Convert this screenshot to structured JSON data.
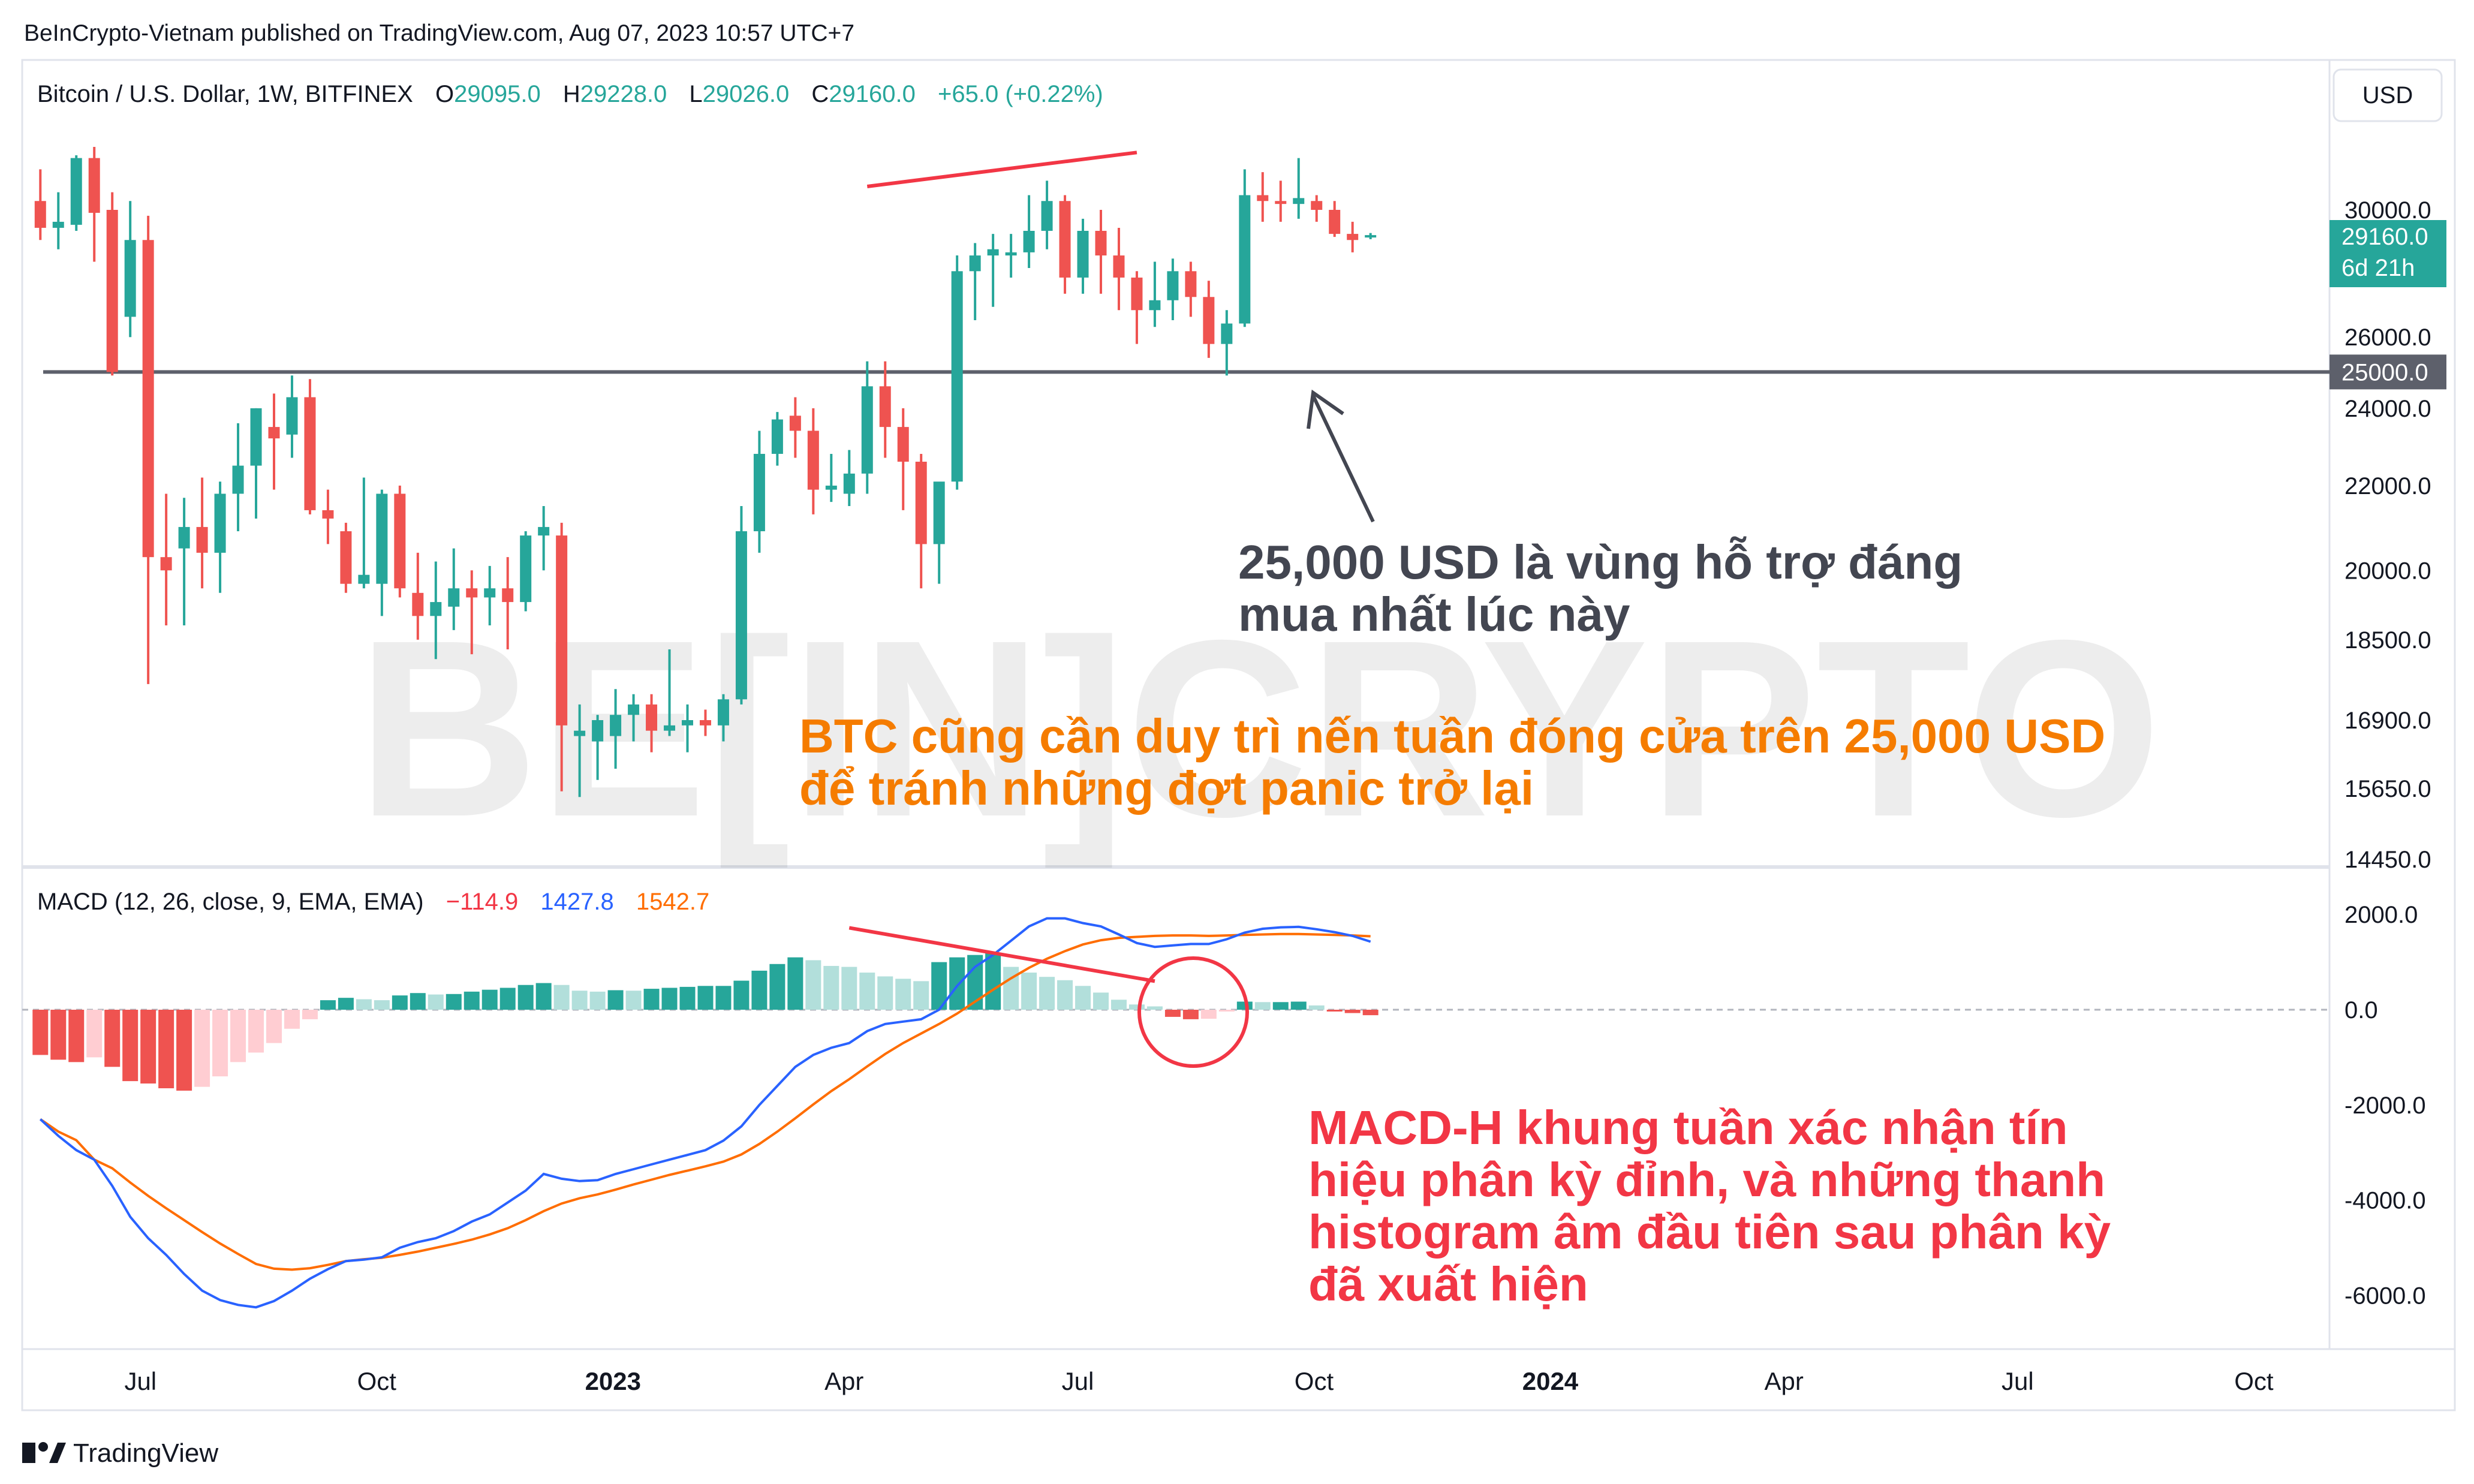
{
  "header": {
    "published_by": "BeInCrypto-Vietnam published on TradingView.com, Aug 07, 2023 10:57 UTC+7"
  },
  "symbol": {
    "name": "Bitcoin / U.S. Dollar, 1W, BITFINEX",
    "open_label": "O",
    "open": "29095.0",
    "high_label": "H",
    "high": "29228.0",
    "low_label": "L",
    "low": "29026.0",
    "close_label": "C",
    "close": "29160.0",
    "change": "+65.0 (+0.22%)"
  },
  "currency_button": "USD",
  "price_tag": {
    "price": "29160.0",
    "countdown": "6d 21h"
  },
  "support_tag": "25000.0",
  "annotations": {
    "support_note_1": "25,000 USD là vùng hỗ trợ đáng",
    "support_note_2": "mua nhất lúc này",
    "weekly_note_1": "BTC cũng cần duy trì nến tuần đóng cửa trên 25,000 USD",
    "weekly_note_2": "để tránh những đợt panic trở lại",
    "macd_note_1": "MACD-H khung tuần xác nhận tín",
    "macd_note_2": "hiệu phân kỳ đỉnh, và những thanh",
    "macd_note_3": "histogram âm đầu tiên sau phân kỳ",
    "macd_note_4": "đã xuất hiện"
  },
  "watermark": "BE[IN]CRYPTO",
  "macd_legend": {
    "name": "MACD (12, 26, close, 9, EMA, EMA)",
    "hist": "−114.9",
    "macd": "1427.8",
    "signal": "1542.7"
  },
  "footer": {
    "brand": "TradingView"
  },
  "colors": {
    "up": "#26a69a",
    "down": "#ef5350",
    "hist_up_weak": "#b2dfdb",
    "hist_down_weak": "#ffcdd2",
    "macd": "#2962ff",
    "signal": "#ff6d00",
    "note_orange": "#f57c00",
    "note_red": "#f23645",
    "note_dark": "#434651"
  },
  "chart_data": [
    {
      "type": "candlestick",
      "title": "Bitcoin / U.S. Dollar, 1W, BITFINEX",
      "y_scale": "log",
      "y_ticks": [
        "30000.0",
        "26000.0",
        "24000.0",
        "22000.0",
        "20000.0",
        "18500.0",
        "16900.0",
        "15650.0",
        "14450.0"
      ],
      "x_ticks": [
        "Jul",
        "Oct",
        "2023",
        "Apr",
        "Jul",
        "Oct",
        "2024",
        "Apr",
        "Jul",
        "Oct"
      ],
      "support_level": 25000,
      "x_start": "2022-05-23",
      "interval": "1W",
      "ohlc": [
        [
          30300,
          31400,
          29000,
          29400
        ],
        [
          29400,
          30600,
          28700,
          29600
        ],
        [
          29500,
          31900,
          29300,
          31800
        ],
        [
          31800,
          32200,
          28300,
          29900
        ],
        [
          30000,
          30600,
          24900,
          25000
        ],
        [
          26600,
          30300,
          26000,
          29000
        ],
        [
          29000,
          29800,
          17600,
          20300
        ],
        [
          20300,
          21800,
          18800,
          20000
        ],
        [
          20500,
          21700,
          18800,
          21000
        ],
        [
          21000,
          22200,
          19600,
          20400
        ],
        [
          20400,
          22100,
          19500,
          21800
        ],
        [
          21800,
          23600,
          20900,
          22500
        ],
        [
          22500,
          24000,
          21200,
          24000
        ],
        [
          23500,
          24400,
          21900,
          23200
        ],
        [
          23300,
          24900,
          22700,
          24300
        ],
        [
          24300,
          24800,
          21300,
          21400
        ],
        [
          21400,
          21900,
          20600,
          21200
        ],
        [
          20900,
          21100,
          19500,
          19700
        ],
        [
          19700,
          22200,
          19600,
          19900
        ],
        [
          19700,
          21900,
          19000,
          21800
        ],
        [
          21800,
          22000,
          19400,
          19600
        ],
        [
          19500,
          20400,
          18500,
          19000
        ],
        [
          19000,
          20200,
          18100,
          19300
        ],
        [
          19200,
          20500,
          18700,
          19600
        ],
        [
          19600,
          20000,
          18200,
          19400
        ],
        [
          19400,
          20100,
          18800,
          19600
        ],
        [
          19600,
          20300,
          18300,
          19300
        ],
        [
          19300,
          20900,
          19100,
          20800
        ],
        [
          20800,
          21500,
          20000,
          21000
        ],
        [
          20800,
          21100,
          15600,
          16800
        ],
        [
          16600,
          17200,
          15500,
          16700
        ],
        [
          16500,
          17000,
          15800,
          16900
        ],
        [
          16600,
          17500,
          16000,
          17000
        ],
        [
          17000,
          17400,
          16500,
          17200
        ],
        [
          17200,
          17400,
          16300,
          16700
        ],
        [
          16700,
          18300,
          16600,
          16800
        ],
        [
          16800,
          17200,
          16300,
          16900
        ],
        [
          16900,
          17100,
          16600,
          16800
        ],
        [
          16800,
          17400,
          16500,
          17300
        ],
        [
          17300,
          21500,
          17200,
          20900
        ],
        [
          20900,
          23400,
          20400,
          22800
        ],
        [
          22800,
          23900,
          22500,
          23700
        ],
        [
          23800,
          24300,
          22700,
          23400
        ],
        [
          23400,
          24000,
          21300,
          21900
        ],
        [
          21900,
          22800,
          21600,
          22000
        ],
        [
          21800,
          22900,
          21500,
          22300
        ],
        [
          22300,
          25300,
          21800,
          24600
        ],
        [
          24600,
          25300,
          22700,
          23500
        ],
        [
          23500,
          24000,
          21400,
          22600
        ],
        [
          22600,
          22800,
          19600,
          20600
        ],
        [
          20600,
          22000,
          19700,
          22100
        ],
        [
          22100,
          28500,
          21900,
          28000
        ],
        [
          28000,
          28900,
          26500,
          28500
        ],
        [
          28500,
          29200,
          26900,
          28700
        ],
        [
          28500,
          29200,
          27800,
          28600
        ],
        [
          28600,
          30500,
          28100,
          29300
        ],
        [
          29300,
          31000,
          28700,
          30300
        ],
        [
          30300,
          30500,
          27300,
          27800
        ],
        [
          27800,
          29700,
          27300,
          29300
        ],
        [
          29300,
          30000,
          27300,
          28500
        ],
        [
          28500,
          29400,
          26800,
          27800
        ],
        [
          27800,
          28000,
          25800,
          26800
        ],
        [
          26800,
          28300,
          26300,
          27100
        ],
        [
          27100,
          28400,
          26500,
          28000
        ],
        [
          28000,
          28300,
          26600,
          27200
        ],
        [
          27200,
          27700,
          25400,
          25800
        ],
        [
          25800,
          26800,
          24900,
          26400
        ],
        [
          26400,
          31400,
          26300,
          30500
        ],
        [
          30500,
          31300,
          29600,
          30300
        ],
        [
          30300,
          31000,
          29600,
          30200
        ],
        [
          30200,
          31800,
          29700,
          30400
        ],
        [
          30300,
          30500,
          29600,
          30000
        ],
        [
          30000,
          30300,
          29100,
          29200
        ],
        [
          29200,
          29600,
          28600,
          29000
        ],
        [
          29095,
          29228,
          29026,
          29160
        ]
      ],
      "annotation_lines": [
        {
          "name": "price_higher_high_trendline",
          "from": [
            "2023-04-10",
            30800
          ],
          "to": [
            "2023-07-24",
            32000
          ]
        }
      ]
    },
    {
      "type": "macd",
      "title": "MACD (12, 26, close, 9, EMA, EMA)",
      "y_ticks": [
        "2000.0",
        "0.0",
        "-2000.0",
        "-4000.0",
        "-6000.0"
      ],
      "series": [
        {
          "name": "MACD",
          "values": [
            -2300,
            -2650,
            -2950,
            -3150,
            -3700,
            -4350,
            -4800,
            -5150,
            -5550,
            -5900,
            -6100,
            -6200,
            -6250,
            -6120,
            -5900,
            -5650,
            -5450,
            -5280,
            -5250,
            -5200,
            -5000,
            -4880,
            -4800,
            -4650,
            -4450,
            -4300,
            -4050,
            -3800,
            -3450,
            -3550,
            -3600,
            -3580,
            -3450,
            -3350,
            -3250,
            -3150,
            -3050,
            -2950,
            -2750,
            -2450,
            -2000,
            -1600,
            -1200,
            -950,
            -800,
            -700,
            -450,
            -300,
            -250,
            -200,
            0,
            500,
            900,
            1150,
            1450,
            1750,
            1920,
            1920,
            1820,
            1750,
            1580,
            1400,
            1320,
            1350,
            1380,
            1380,
            1480,
            1620,
            1700,
            1730,
            1740,
            1690,
            1630,
            1550,
            1430
          ]
        },
        {
          "name": "Signal",
          "values": [
            -2300,
            -2560,
            -2740,
            -3150,
            -3330,
            -3630,
            -3910,
            -4170,
            -4420,
            -4670,
            -4910,
            -5130,
            -5340,
            -5440,
            -5460,
            -5430,
            -5360,
            -5280,
            -5240,
            -5210,
            -5150,
            -5080,
            -5000,
            -4920,
            -4830,
            -4720,
            -4590,
            -4420,
            -4230,
            -4070,
            -3960,
            -3880,
            -3780,
            -3670,
            -3570,
            -3470,
            -3380,
            -3290,
            -3190,
            -3040,
            -2820,
            -2560,
            -2280,
            -1990,
            -1710,
            -1460,
            -1190,
            -930,
            -700,
            -500,
            -300,
            -80,
            170,
            420,
            660,
            880,
            1070,
            1230,
            1370,
            1460,
            1510,
            1530,
            1550,
            1560,
            1560,
            1550,
            1560,
            1570,
            1580,
            1590,
            1590,
            1580,
            1570,
            1560,
            1543
          ]
        },
        {
          "name": "Histogram",
          "values": [
            -950,
            -1050,
            -1100,
            -1000,
            -1200,
            -1500,
            -1550,
            -1650,
            -1700,
            -1620,
            -1400,
            -1100,
            -900,
            -700,
            -400,
            -200,
            200,
            250,
            220,
            200,
            300,
            350,
            320,
            330,
            380,
            420,
            460,
            520,
            560,
            520,
            400,
            380,
            410,
            400,
            440,
            460,
            480,
            500,
            500,
            610,
            820,
            960,
            1100,
            1040,
            920,
            900,
            780,
            700,
            650,
            600,
            1000,
            1100,
            1150,
            1200,
            900,
            780,
            690,
            620,
            500,
            360,
            210,
            110,
            70,
            -150,
            -200,
            -190,
            -30,
            170,
            160,
            160,
            170,
            90,
            -10,
            -70,
            -115
          ]
        }
      ],
      "annotation_lines": [
        {
          "name": "macd_lower_high_trendline",
          "from": [
            "2023-04-10",
            1720
          ],
          "to": [
            "2023-07-24",
            600
          ]
        }
      ]
    }
  ]
}
